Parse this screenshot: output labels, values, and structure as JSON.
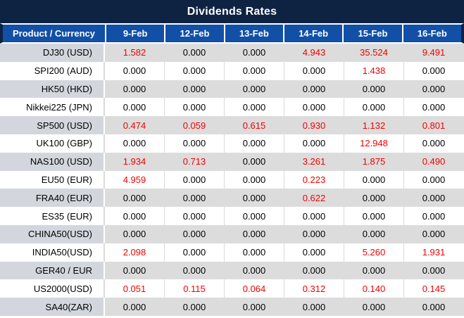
{
  "title": "Dividends Rates",
  "table": {
    "product_header": "Product / Currency",
    "date_headers": [
      "9-Feb",
      "12-Feb",
      "13-Feb",
      "14-Feb",
      "15-Feb",
      "16-Feb"
    ],
    "zero_value": "0.000",
    "rows": [
      {
        "product": "DJ30 (USD)",
        "values": [
          "1.582",
          "0.000",
          "0.000",
          "4.943",
          "35.524",
          "9.491"
        ]
      },
      {
        "product": "SPI200 (AUD)",
        "values": [
          "0.000",
          "0.000",
          "0.000",
          "0.000",
          "1.438",
          "0.000"
        ]
      },
      {
        "product": "HK50 (HKD)",
        "values": [
          "0.000",
          "0.000",
          "0.000",
          "0.000",
          "0.000",
          "0.000"
        ]
      },
      {
        "product": "Nikkei225 (JPN)",
        "values": [
          "0.000",
          "0.000",
          "0.000",
          "0.000",
          "0.000",
          "0.000"
        ]
      },
      {
        "product": "SP500 (USD)",
        "values": [
          "0.474",
          "0.059",
          "0.615",
          "0.930",
          "1.132",
          "0.801"
        ]
      },
      {
        "product": "UK100 (GBP)",
        "values": [
          "0.000",
          "0.000",
          "0.000",
          "0.000",
          "12.948",
          "0.000"
        ]
      },
      {
        "product": "NAS100 (USD)",
        "values": [
          "1.934",
          "0.713",
          "0.000",
          "3.261",
          "1.875",
          "0.490"
        ]
      },
      {
        "product": "EU50 (EUR)",
        "values": [
          "4.959",
          "0.000",
          "0.000",
          "0.223",
          "0.000",
          "0.000"
        ]
      },
      {
        "product": "FRA40 (EUR)",
        "values": [
          "0.000",
          "0.000",
          "0.000",
          "0.622",
          "0.000",
          "0.000"
        ]
      },
      {
        "product": "ES35 (EUR)",
        "values": [
          "0.000",
          "0.000",
          "0.000",
          "0.000",
          "0.000",
          "0.000"
        ]
      },
      {
        "product": "CHINA50(USD)",
        "values": [
          "0.000",
          "0.000",
          "0.000",
          "0.000",
          "0.000",
          "0.000"
        ]
      },
      {
        "product": "INDIA50(USD)",
        "values": [
          "2.098",
          "0.000",
          "0.000",
          "0.000",
          "5.260",
          "1.931"
        ]
      },
      {
        "product": "GER40 / EUR",
        "values": [
          "0.000",
          "0.000",
          "0.000",
          "0.000",
          "0.000",
          "0.000"
        ]
      },
      {
        "product": "US2000(USD)",
        "values": [
          "0.051",
          "0.115",
          "0.064",
          "0.312",
          "0.140",
          "0.145"
        ]
      },
      {
        "product": "SA40(ZAR)",
        "values": [
          "0.000",
          "0.000",
          "0.000",
          "0.000",
          "0.000",
          "0.000"
        ]
      }
    ]
  },
  "colors": {
    "title_navy": "#0e2342",
    "header_blue": "#1150a6",
    "row_gray": "#dcdcdc",
    "product_gray": "#d3d7dd",
    "row_white": "#ffffff",
    "divider_gray": "#dadada",
    "value_red": "#f20000",
    "value_black": "#000000",
    "header_text": "#ffffff"
  }
}
